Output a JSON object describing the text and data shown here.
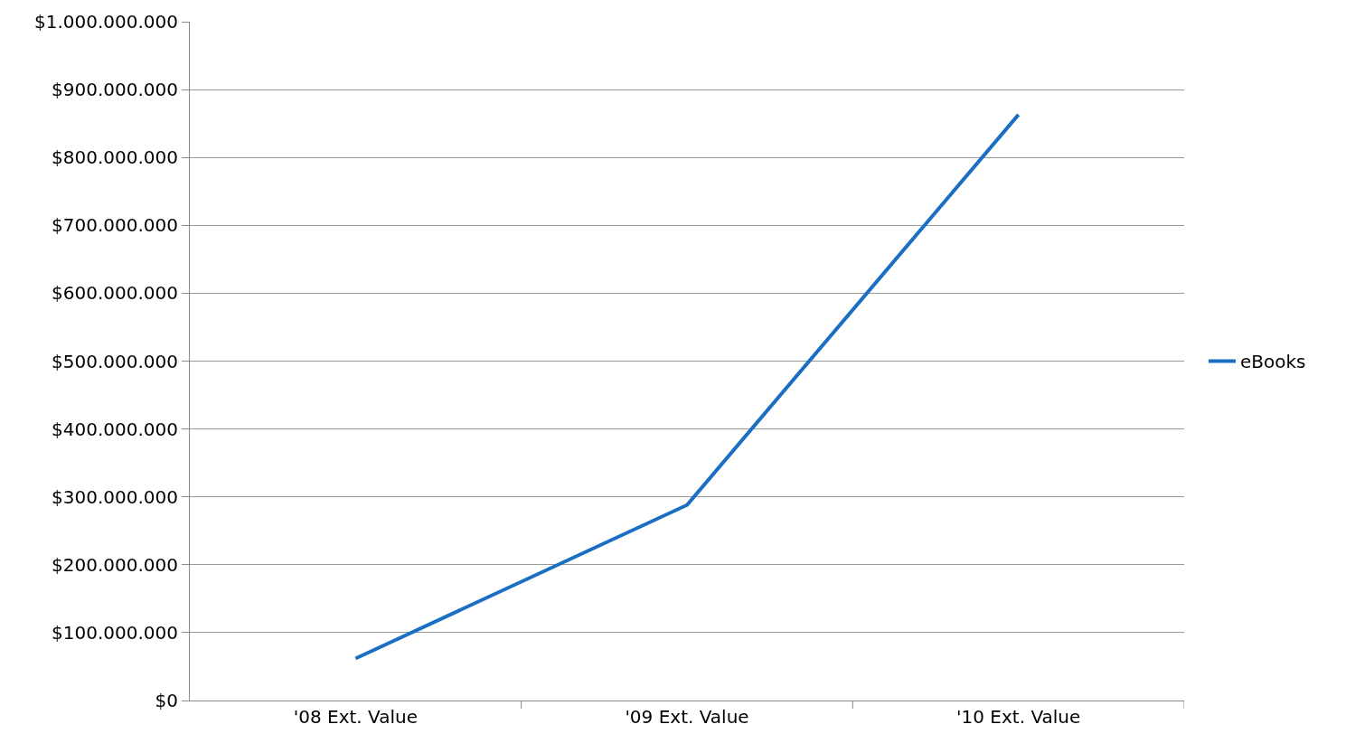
{
  "chart_data": {
    "type": "line",
    "categories": [
      "'08 Ext. Value",
      "'09 Ext. Value",
      "'10 Ext. Value"
    ],
    "series": [
      {
        "name": "eBooks",
        "color": "#1a6fc4",
        "values": [
          62000000,
          288000000,
          863000000
        ]
      }
    ],
    "ylim": [
      0,
      1000000000
    ],
    "yticks": [
      {
        "value": 0,
        "label": "$0"
      },
      {
        "value": 100000000,
        "label": "$100.000.000"
      },
      {
        "value": 200000000,
        "label": "$200.000.000"
      },
      {
        "value": 300000000,
        "label": "$300.000.000"
      },
      {
        "value": 400000000,
        "label": "$400.000.000"
      },
      {
        "value": 500000000,
        "label": "$500.000.000"
      },
      {
        "value": 600000000,
        "label": "$600.000.000"
      },
      {
        "value": 700000000,
        "label": "$700.000.000"
      },
      {
        "value": 800000000,
        "label": "$800.000.000"
      },
      {
        "value": 900000000,
        "label": "$900.000.000"
      },
      {
        "value": 1000000000,
        "label": "$1.000.000.000"
      }
    ],
    "grid": "y",
    "legend": "right",
    "marker": "none",
    "line_style": "solid"
  }
}
